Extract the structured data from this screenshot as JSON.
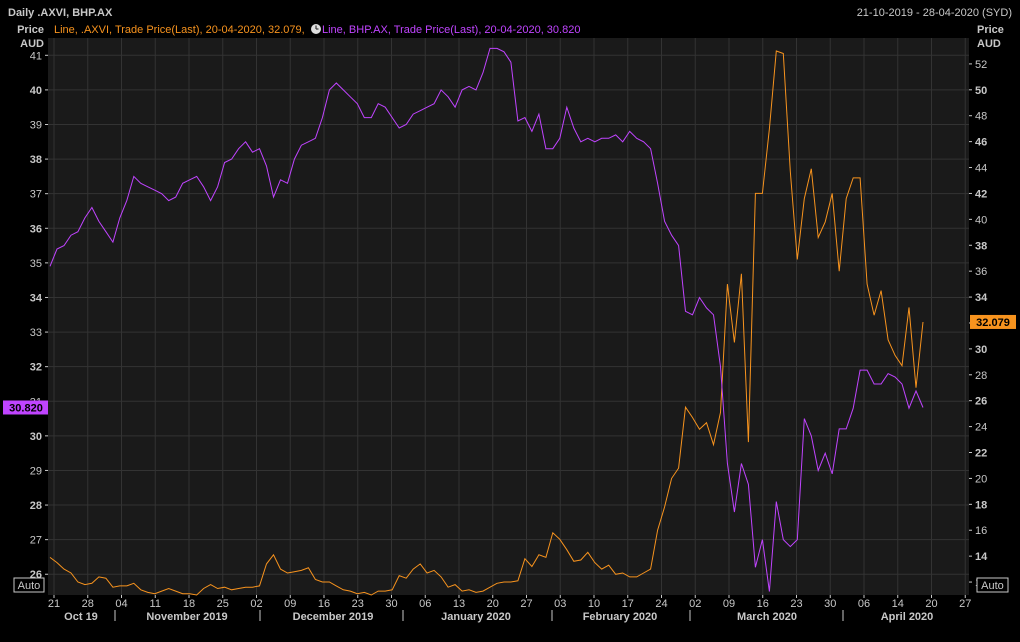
{
  "header": {
    "title": "Daily .AXVI, BHP.AX",
    "date_range": "21-10-2019 - 28-04-2020 (SYD)"
  },
  "legend": {
    "entry1": "Line, .AXVI, Trade Price(Last), 20-04-2020, 32.079,",
    "entry2": "Line, BHP.AX, Trade Price(Last), 20-04-2020, 30.820",
    "clock_icon": "clock-icon"
  },
  "buttons": {
    "auto_left": "Auto",
    "auto_right": "Auto"
  },
  "colors": {
    "axvi": "#f7931e",
    "bhp": "#c044ff",
    "grid": "#333333",
    "text": "#c8c8c8",
    "bg": "#000000",
    "plot_bg": "#1a1a1a"
  },
  "chart_data": {
    "type": "line",
    "left_axis": {
      "label_line1": "Price",
      "label_line2": "AUD",
      "ylim": [
        25.4,
        41.5
      ],
      "ticks": [
        26,
        27,
        28,
        29,
        30,
        31,
        32,
        33,
        34,
        35,
        36,
        37,
        38,
        39,
        40,
        41
      ],
      "last_value_label": "30.820"
    },
    "right_axis": {
      "label_line1": "Price",
      "label_line2": "AUD",
      "ylim": [
        11.0,
        54.0
      ],
      "ticks": [
        12,
        14,
        16,
        18,
        20,
        22,
        24,
        26,
        28,
        30,
        32,
        34,
        36,
        38,
        40,
        42,
        44,
        46,
        48,
        50,
        52
      ],
      "last_value_label": "32.079"
    },
    "x_axis": {
      "day_ticks": [
        "21",
        "28",
        "04",
        "11",
        "18",
        "25",
        "02",
        "09",
        "16",
        "23",
        "30",
        "06",
        "13",
        "20",
        "27",
        "03",
        "10",
        "17",
        "24",
        "02",
        "09",
        "16",
        "23",
        "30",
        "06",
        "14",
        "20",
        "27"
      ],
      "months": [
        "Oct 19",
        "November 2019",
        "December 2019",
        "January 2020",
        "February 2020",
        "March 2020",
        "April 2020"
      ]
    },
    "series": [
      {
        "name": ".AXVI",
        "axis": "right",
        "values": [
          13.9,
          13.5,
          13.0,
          12.7,
          12.0,
          11.8,
          11.9,
          12.4,
          12.3,
          11.6,
          11.7,
          11.7,
          11.9,
          11.4,
          11.2,
          11.1,
          11.3,
          11.5,
          11.3,
          11.1,
          11.1,
          11.0,
          11.5,
          11.8,
          11.5,
          11.6,
          11.4,
          11.5,
          11.6,
          11.6,
          11.7,
          13.4,
          14.1,
          13.0,
          12.7,
          12.8,
          12.9,
          13.1,
          12.2,
          12.0,
          12.0,
          11.7,
          11.4,
          11.3,
          11.1,
          11.2,
          11.0,
          11.3,
          11.3,
          11.4,
          12.5,
          12.3,
          13.0,
          13.4,
          12.7,
          12.9,
          12.4,
          11.6,
          11.8,
          11.3,
          11.4,
          11.2,
          11.3,
          11.6,
          11.9,
          12.0,
          12.0,
          12.1,
          13.8,
          13.2,
          14.1,
          13.9,
          15.8,
          15.3,
          14.5,
          13.6,
          13.7,
          14.3,
          13.5,
          13.0,
          13.3,
          12.6,
          12.7,
          12.4,
          12.4,
          12.7,
          13.0,
          16.0,
          17.8,
          20.0,
          20.8,
          25.5,
          24.7,
          23.8,
          24.3,
          22.6,
          25.1,
          35.0,
          30.5,
          35.8,
          22.8,
          42.0,
          42.0,
          47.0,
          53.0,
          52.8,
          43.7,
          36.9,
          41.6,
          43.9,
          38.6,
          39.8,
          42.0,
          36.0,
          41.6,
          43.2,
          43.2,
          35.0,
          32.6,
          34.5,
          30.7,
          29.5,
          28.7,
          33.2,
          27.0,
          32.079
        ]
      },
      {
        "name": "BHP.AX",
        "axis": "left",
        "values": [
          34.9,
          35.4,
          35.5,
          35.8,
          35.9,
          36.3,
          36.6,
          36.2,
          35.9,
          35.6,
          36.3,
          36.8,
          37.5,
          37.3,
          37.2,
          37.1,
          37.0,
          36.8,
          36.9,
          37.3,
          37.4,
          37.5,
          37.2,
          36.8,
          37.2,
          37.9,
          38.0,
          38.3,
          38.5,
          38.2,
          38.3,
          37.8,
          36.9,
          37.4,
          37.3,
          38.0,
          38.4,
          38.5,
          38.6,
          39.2,
          40.0,
          40.2,
          40.0,
          39.8,
          39.6,
          39.2,
          39.2,
          39.6,
          39.5,
          39.2,
          38.9,
          39.0,
          39.3,
          39.4,
          39.5,
          39.6,
          40.0,
          39.8,
          39.5,
          40.0,
          40.1,
          40.0,
          40.5,
          41.2,
          41.2,
          41.1,
          40.8,
          39.1,
          39.2,
          38.8,
          39.3,
          38.3,
          38.3,
          38.6,
          39.5,
          38.9,
          38.5,
          38.6,
          38.5,
          38.6,
          38.6,
          38.7,
          38.5,
          38.8,
          38.6,
          38.5,
          38.3,
          37.3,
          36.2,
          35.8,
          35.5,
          33.6,
          33.5,
          34.0,
          33.7,
          33.5,
          32.0,
          29.2,
          27.8,
          29.2,
          28.6,
          26.2,
          27.0,
          25.5,
          28.1,
          27.0,
          26.8,
          27.0,
          30.5,
          30.0,
          29.0,
          29.5,
          28.9,
          30.2,
          30.2,
          30.8,
          31.9,
          31.9,
          31.5,
          31.5,
          31.8,
          31.7,
          31.5,
          30.8,
          31.3,
          30.82
        ]
      }
    ]
  }
}
